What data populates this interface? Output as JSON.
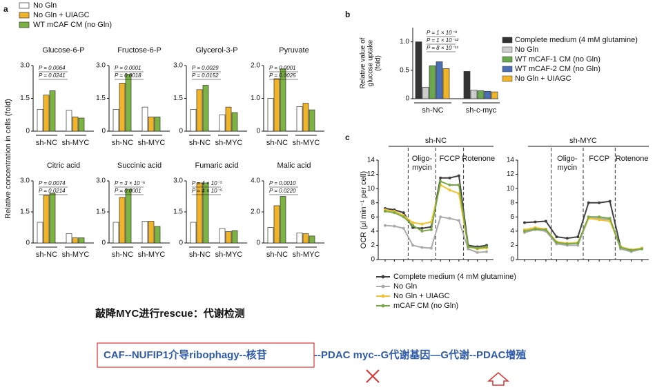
{
  "chart_data": [
    {
      "type": "bar",
      "panel": "a",
      "title": "Glucose-6-P",
      "ylabel": "Relative concentration in cells (fold)",
      "categories": [
        "sh-NC",
        "sh-MYC"
      ],
      "ylim": [
        0,
        3
      ],
      "yticks": [
        0,
        1.5,
        {
          "value": 3,
          "label": "3.0"
        }
      ],
      "annotations": [
        "P = 0.0064",
        "P = 0.0241"
      ],
      "series": [
        {
          "name": "No Gln",
          "color": "#ffffff",
          "values": [
            1.0,
            0.95
          ]
        },
        {
          "name": "No Gln + UIAGC",
          "color": "#f0b429",
          "values": [
            1.65,
            0.65
          ]
        },
        {
          "name": "WT mCAF CM (no Gln)",
          "color": "#7cb342",
          "values": [
            1.85,
            0.6
          ]
        }
      ]
    },
    {
      "type": "bar",
      "title": "Fructose-6-P",
      "categories": [
        "sh-NC",
        "sh-MYC"
      ],
      "ylim": [
        0,
        3
      ],
      "yticks": [
        0,
        1.5,
        {
          "value": 3,
          "label": "3.0"
        }
      ],
      "annotations": [
        "P = 0.0001",
        "P = 0.0018"
      ],
      "series": [
        {
          "name": "No Gln",
          "color": "#ffffff",
          "values": [
            1.0,
            1.1
          ]
        },
        {
          "name": "No Gln + UIAGC",
          "color": "#f0b429",
          "values": [
            2.2,
            0.65
          ]
        },
        {
          "name": "WT mCAF CM (no Gln)",
          "color": "#7cb342",
          "values": [
            2.6,
            0.65
          ]
        }
      ]
    },
    {
      "type": "bar",
      "title": "Glycerol-3-P",
      "categories": [
        "sh-NC",
        "sh-MYC"
      ],
      "ylim": [
        0,
        3
      ],
      "yticks": [
        0,
        1.5,
        {
          "value": 3,
          "label": "3.0"
        }
      ],
      "annotations": [
        "P = 0.0029",
        "P = 0.0152"
      ],
      "series": [
        {
          "name": "No Gln",
          "color": "#ffffff",
          "values": [
            1.0,
            0.75
          ]
        },
        {
          "name": "No Gln + UIAGC",
          "color": "#f0b429",
          "values": [
            1.9,
            1.1
          ]
        },
        {
          "name": "WT mCAF CM (no Gln)",
          "color": "#7cb342",
          "values": [
            2.1,
            0.85
          ]
        }
      ]
    },
    {
      "type": "bar",
      "title": "Pyruvate",
      "categories": [
        "sh-NC",
        "sh-MYC"
      ],
      "ylim": [
        0,
        2
      ],
      "yticks": [
        0,
        {
          "value": 1,
          "label": "1.0"
        },
        {
          "value": 2,
          "label": "2.0"
        }
      ],
      "annotations": [
        "P = 0.0001",
        "P = 0.0025"
      ],
      "series": [
        {
          "name": "No Gln",
          "color": "#ffffff",
          "values": [
            1.0,
            0.75
          ]
        },
        {
          "name": "No Gln + UIAGC",
          "color": "#f0b429",
          "values": [
            1.6,
            0.85
          ]
        },
        {
          "name": "WT mCAF CM (no Gln)",
          "color": "#7cb342",
          "values": [
            1.9,
            0.65
          ]
        }
      ]
    },
    {
      "type": "bar",
      "title": "Citric acid",
      "categories": [
        "sh-NC",
        "sh-MYC"
      ],
      "ylim": [
        0,
        3
      ],
      "yticks": [
        0,
        1.5,
        {
          "value": 3,
          "label": "3.0"
        }
      ],
      "annotations": [
        "P = 0.0074",
        "P = 0.0214"
      ],
      "series": [
        {
          "name": "No Gln",
          "color": "#ffffff",
          "values": [
            1.0,
            0.45
          ]
        },
        {
          "name": "No Gln + UIAGC",
          "color": "#f0b429",
          "values": [
            2.3,
            0.25
          ]
        },
        {
          "name": "WT mCAF CM (no Gln)",
          "color": "#7cb342",
          "values": [
            2.4,
            0.25
          ]
        }
      ]
    },
    {
      "type": "bar",
      "title": "Succinic acid",
      "categories": [
        "sh-NC",
        "sh-MYC"
      ],
      "ylim": [
        0,
        3
      ],
      "yticks": [
        0,
        1.5,
        {
          "value": 3,
          "label": "3.0"
        }
      ],
      "annotations": [
        "P = 3 × 10⁻⁶",
        "P = 0.0001"
      ],
      "series": [
        {
          "name": "No Gln",
          "color": "#ffffff",
          "values": [
            1.0,
            1.05
          ]
        },
        {
          "name": "No Gln + UIAGC",
          "color": "#f0b429",
          "values": [
            2.2,
            1.05
          ]
        },
        {
          "name": "WT mCAF CM (no Gln)",
          "color": "#7cb342",
          "values": [
            2.6,
            0.8
          ]
        }
      ]
    },
    {
      "type": "bar",
      "title": "Fumaric acid",
      "categories": [
        "sh-NC",
        "sh-MYC"
      ],
      "ylim": [
        0,
        3
      ],
      "yticks": [
        0,
        1.5,
        {
          "value": 3,
          "label": "3.0"
        }
      ],
      "annotations": [
        "P = 4 × 10⁻⁵",
        "P = 4 × 10⁻⁵"
      ],
      "series": [
        {
          "name": "No Gln",
          "color": "#ffffff",
          "values": [
            1.0,
            0.7
          ]
        },
        {
          "name": "No Gln + UIAGC",
          "color": "#f0b429",
          "values": [
            2.9,
            0.55
          ]
        },
        {
          "name": "WT mCAF CM (no Gln)",
          "color": "#7cb342",
          "values": [
            2.9,
            0.6
          ]
        }
      ]
    },
    {
      "type": "bar",
      "title": "Malic acid",
      "categories": [
        "sh-NC",
        "sh-MYC"
      ],
      "ylim": [
        0,
        4
      ],
      "yticks": [
        0,
        {
          "value": 2,
          "label": "2.0"
        },
        {
          "value": 4,
          "label": "4.0"
        }
      ],
      "annotations": [
        "P = 0.0010",
        "P = 0.0220"
      ],
      "series": [
        {
          "name": "No Gln",
          "color": "#ffffff",
          "values": [
            1.0,
            0.65
          ]
        },
        {
          "name": "No Gln + UIAGC",
          "color": "#f0b429",
          "values": [
            2.4,
            0.6
          ]
        },
        {
          "name": "WT mCAF CM (no Gln)",
          "color": "#7cb342",
          "values": [
            3.0,
            0.45
          ]
        }
      ]
    },
    {
      "type": "bar",
      "panel": "b",
      "ylabel": [
        "Relative value of",
        "glucose uptake",
        "(fold)"
      ],
      "categories": [
        "sh-NC",
        "sh-c-myc"
      ],
      "ylim": [
        0,
        1.25
      ],
      "yticks": [
        0,
        0.5,
        {
          "value": 1,
          "label": "1.0"
        }
      ],
      "annotations": [
        "P = 1 × 10⁻⁹",
        "P = 1 × 10⁻¹²",
        "P = 8 × 10⁻¹¹"
      ],
      "series": [
        {
          "name": "Complete medium (4 mM glutamine)",
          "color": "#333333",
          "values": [
            1.0,
            0.48
          ]
        },
        {
          "name": "No Gln",
          "color": "#cccccc",
          "values": [
            0.2,
            0.15
          ]
        },
        {
          "name": "WT mCAF-1 CM (no Gln)",
          "color": "#6aa84f",
          "values": [
            0.58,
            0.14
          ]
        },
        {
          "name": "WT mCAF-2 CM (no Gln)",
          "color": "#4a6fb5",
          "values": [
            0.65,
            0.13
          ]
        },
        {
          "name": "No Gln + UIAGC",
          "color": "#f0b429",
          "values": [
            0.53,
            0.12
          ]
        }
      ]
    },
    {
      "type": "line",
      "panel": "c",
      "group_label": "sh-NC",
      "phases": [
        [
          "Oligo-",
          "mycin"
        ],
        [
          "FCCP"
        ],
        [
          "Rotenone"
        ]
      ],
      "ylabel": "OCR (μl min⁻¹ per cell)",
      "categories": [
        null,
        null,
        null,
        null,
        null,
        null,
        null,
        null,
        null,
        null,
        null,
        null
      ],
      "ylim": [
        0,
        14
      ],
      "yticks": [
        0,
        2,
        4,
        6,
        8,
        10,
        12,
        14
      ],
      "series": [
        {
          "name": "Complete medium (4 mM glutamine)",
          "color": "#404040",
          "values": [
            7.2,
            7.0,
            6.6,
            4.5,
            4.4,
            4.6,
            11.5,
            11.5,
            11.8,
            2.0,
            1.8,
            2.0
          ]
        },
        {
          "name": "No Gln",
          "color": "#aaaaaa",
          "values": [
            4.8,
            4.7,
            4.4,
            2.0,
            1.7,
            1.6,
            6.0,
            5.8,
            5.5,
            1.5,
            1.0,
            1.1
          ]
        },
        {
          "name": "No Gln + UIAGC",
          "color": "#f2c230",
          "values": [
            7.0,
            6.8,
            6.2,
            5.2,
            5.0,
            5.3,
            10.5,
            9.8,
            9.3,
            1.8,
            1.5,
            1.6
          ]
        },
        {
          "name": "mCAF CM (no Gln)",
          "color": "#78a846",
          "values": [
            6.8,
            6.6,
            6.0,
            4.8,
            4.0,
            4.2,
            11.0,
            10.5,
            10.5,
            1.8,
            1.6,
            1.8
          ]
        }
      ]
    },
    {
      "type": "line",
      "group_label": "sh-MYC",
      "phases": [
        [
          "Oligo-",
          "mycin"
        ],
        [
          "FCCP"
        ],
        [
          "Rotenone"
        ]
      ],
      "categories": [
        null,
        null,
        null,
        null,
        null,
        null,
        null,
        null,
        null,
        null,
        null,
        null
      ],
      "ylim": [
        0,
        14
      ],
      "yticks": [
        0,
        2,
        4,
        6,
        8,
        10,
        12,
        14
      ],
      "series": [
        {
          "name": "Complete medium (4 mM glutamine)",
          "color": "#404040",
          "values": [
            5.2,
            5.3,
            5.4,
            3.2,
            3.0,
            3.2,
            8.0,
            8.0,
            8.2,
            1.8,
            1.2,
            1.6
          ]
        },
        {
          "name": "No Gln",
          "color": "#aaaaaa",
          "values": [
            3.8,
            4.2,
            4.0,
            2.2,
            2.0,
            2.0,
            5.8,
            5.8,
            5.6,
            1.5,
            1.1,
            1.5
          ]
        },
        {
          "name": "No Gln + UIAGC",
          "color": "#f2c230",
          "values": [
            4.2,
            4.5,
            4.3,
            2.5,
            2.3,
            2.4,
            5.8,
            5.6,
            5.4,
            1.8,
            1.4,
            1.6
          ]
        },
        {
          "name": "mCAF CM (no Gln)",
          "color": "#78a846",
          "values": [
            4.0,
            4.3,
            4.2,
            2.4,
            2.2,
            2.3,
            6.0,
            6.0,
            5.8,
            1.7,
            1.3,
            1.5
          ]
        }
      ]
    }
  ],
  "caption": "敲降MYC进行rescue：代谢检测",
  "summary": [
    "CAF--NUFIP1介导ribophagy--核苷",
    "--PDAC myc--G代谢基因—G代谢--PDAC增殖"
  ]
}
